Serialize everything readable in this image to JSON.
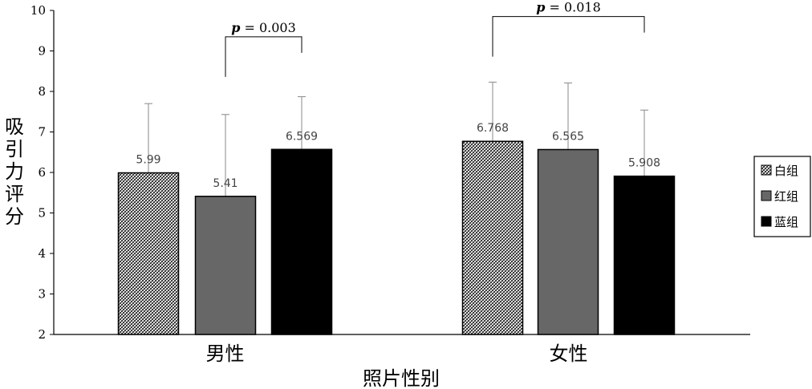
{
  "chart_data": {
    "type": "bar",
    "categories": [
      "男性",
      "女性"
    ],
    "series": [
      {
        "name": "白组",
        "values": [
          5.99,
          6.768
        ],
        "error_upper": [
          7.7,
          8.23
        ],
        "fill": "hatch",
        "color": "#ffffff"
      },
      {
        "name": "红组",
        "values": [
          5.41,
          6.565
        ],
        "error_upper": [
          7.43,
          8.21
        ],
        "fill": "solid",
        "color": "#676767"
      },
      {
        "name": "蓝组",
        "values": [
          6.569,
          5.908
        ],
        "error_upper": [
          7.87,
          7.54
        ],
        "fill": "solid",
        "color": "#000000"
      }
    ],
    "data_labels": [
      [
        "5.99",
        "6.768"
      ],
      [
        "5.41",
        "6.565"
      ],
      [
        "6.569",
        "5.908"
      ]
    ],
    "ylim": [
      2,
      10
    ],
    "yticks": [
      2,
      3,
      4,
      5,
      6,
      7,
      8,
      9,
      10
    ],
    "xlabel": "照片性别",
    "ylabel": "吸引力评分",
    "legend": {
      "placement": "right"
    },
    "annotations": [
      {
        "category_index": 0,
        "from_series": 1,
        "to_series": 2,
        "p_symbol": "p",
        "text": " = 0.003",
        "y": 9.35
      },
      {
        "category_index": 1,
        "from_series": 0,
        "to_series": 2,
        "p_symbol": "p",
        "text": " = 0.018",
        "y": 9.85
      }
    ],
    "grid": false
  }
}
